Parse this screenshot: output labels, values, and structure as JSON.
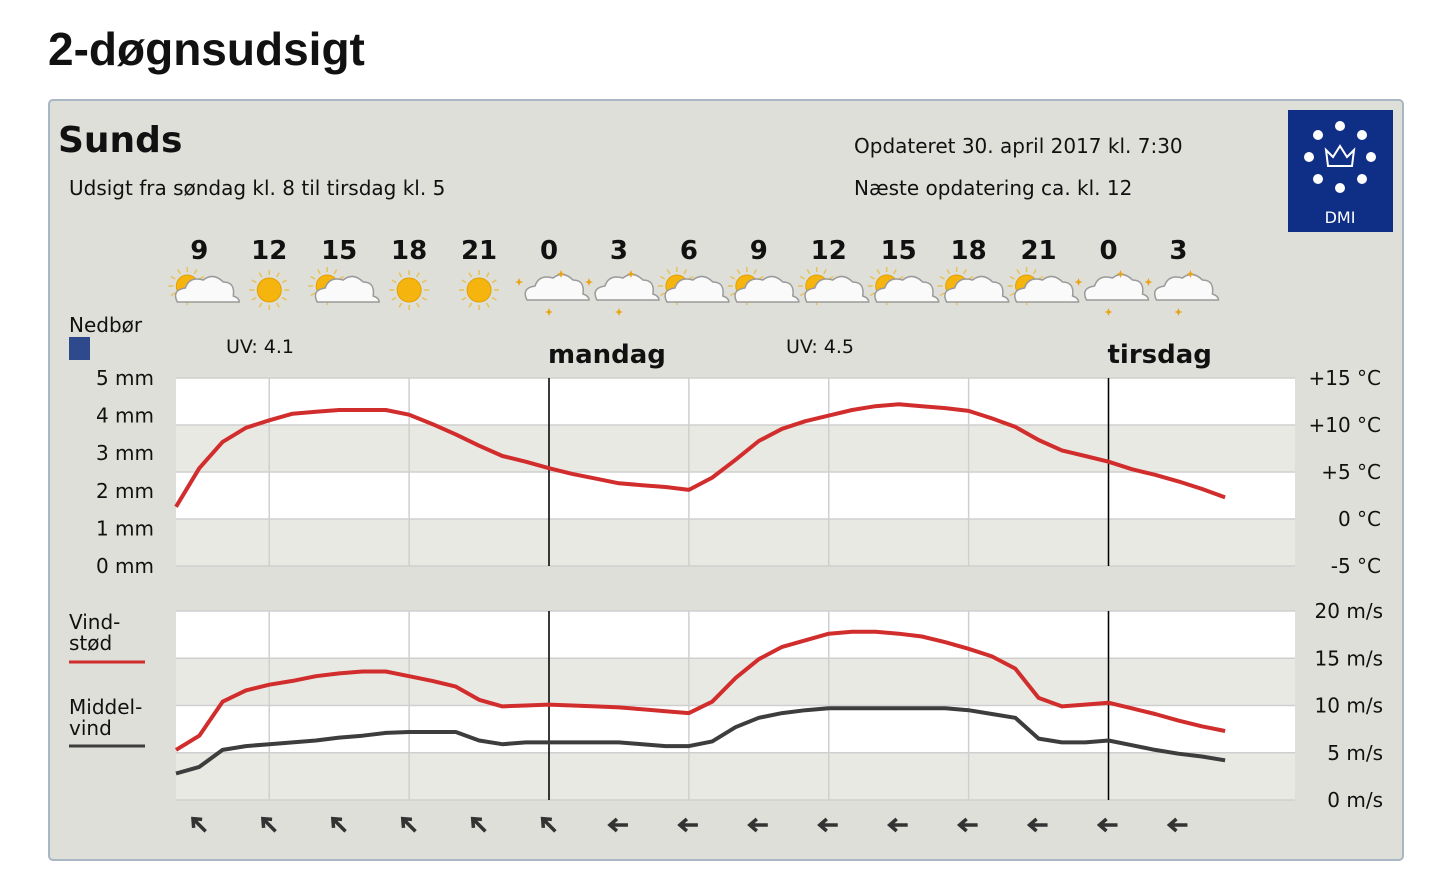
{
  "heading": "2-døgnsudsigt",
  "header": {
    "location": "Sunds",
    "period": "Udsigt fra søndag kl. 8 til tirsdag kl. 5",
    "updated": "Opdateret 30. april 2017 kl. 7:30",
    "next_update": "Næste opdatering ca. kl. 12",
    "logo": "DMI"
  },
  "chart_data": [
    {
      "type": "line",
      "x": [
        8,
        9,
        10,
        11,
        12,
        13,
        14,
        15,
        16,
        17,
        18,
        19,
        20,
        21,
        22,
        23,
        24,
        25,
        26,
        27,
        28,
        29,
        30,
        31,
        32,
        33,
        34,
        35,
        36,
        37,
        38,
        39,
        40,
        41,
        42,
        43,
        44,
        45,
        46,
        47,
        48,
        49,
        50,
        51,
        52,
        53
      ],
      "xlim": [
        8,
        56
      ],
      "xticks": [
        9,
        12,
        15,
        18,
        21,
        {
          "value": 24,
          "label": "0"
        },
        {
          "value": 27,
          "label": "3"
        },
        {
          "value": 30,
          "label": "6"
        },
        {
          "value": 33,
          "label": "9"
        },
        {
          "value": 36,
          "label": "12"
        },
        {
          "value": 39,
          "label": "15"
        },
        {
          "value": 42,
          "label": "18"
        },
        {
          "value": 45,
          "label": "21"
        },
        {
          "value": 48,
          "label": "0"
        },
        {
          "value": 51,
          "label": "3"
        }
      ],
      "ylim": [
        0,
        5
      ],
      "yticks": [
        {
          "value": 5,
          "label": "5 mm"
        },
        {
          "value": 4,
          "label": "4 mm"
        },
        {
          "value": 3,
          "label": "3 mm"
        },
        {
          "value": 2,
          "label": "2 mm"
        },
        {
          "value": 1,
          "label": "1 mm"
        },
        {
          "value": 0,
          "label": "0 mm"
        }
      ],
      "y2lim": [
        -5,
        15
      ],
      "y2ticks": [
        {
          "value": 15,
          "label": "+15 °C"
        },
        {
          "value": 10,
          "label": "+10 °C"
        },
        {
          "value": 5,
          "label": "+5 °C"
        },
        {
          "value": 0,
          "label": "0 °C"
        },
        {
          "value": -5,
          "label": "-5 °C"
        }
      ],
      "grid": true,
      "series": [
        {
          "name": "Nedbør",
          "color": "#2f4a8c",
          "values": [
            0,
            0,
            0,
            0,
            0,
            0,
            0,
            0,
            0,
            0,
            0,
            0,
            0,
            0,
            0,
            0,
            0,
            0,
            0,
            0,
            0,
            0,
            0,
            0,
            0,
            0,
            0,
            0,
            0,
            0,
            0,
            0,
            0,
            0,
            0,
            0,
            0,
            0,
            0,
            0,
            0,
            0,
            0,
            0,
            0,
            0
          ]
        },
        {
          "color": "#d22d2d",
          "axis": "y2",
          "values": [
            1.3,
            5.4,
            8.2,
            9.7,
            10.5,
            11.2,
            11.4,
            11.6,
            11.6,
            11.6,
            11.1,
            10.1,
            9.0,
            7.8,
            6.7,
            6.1,
            5.4,
            4.8,
            4.3,
            3.8,
            3.6,
            3.4,
            3.1,
            4.4,
            6.3,
            8.3,
            9.6,
            10.4,
            11.0,
            11.6,
            12.0,
            12.2,
            12.0,
            11.8,
            11.5,
            10.7,
            9.8,
            8.4,
            7.3,
            6.7,
            6.1,
            5.3,
            4.7,
            4.0,
            3.2,
            2.3
          ]
        }
      ],
      "annotations": [
        "UV: 4.1",
        "UV: 4.5"
      ],
      "days": [
        {
          "label": "mandag",
          "x": 24
        },
        {
          "label": "tirsdag",
          "x": 48
        }
      ]
    },
    {
      "type": "line",
      "x": [
        8,
        9,
        10,
        11,
        12,
        13,
        14,
        15,
        16,
        17,
        18,
        19,
        20,
        21,
        22,
        23,
        24,
        25,
        26,
        27,
        28,
        29,
        30,
        31,
        32,
        33,
        34,
        35,
        36,
        37,
        38,
        39,
        40,
        41,
        42,
        43,
        44,
        45,
        46,
        47,
        48,
        49,
        50,
        51,
        52,
        53
      ],
      "xlim": [
        8,
        56
      ],
      "ylim": [
        0,
        20
      ],
      "yticks": [
        {
          "value": 20,
          "label": "20 m/s"
        },
        {
          "value": 15,
          "label": "15 m/s"
        },
        {
          "value": 10,
          "label": "10 m/s"
        },
        {
          "value": 5,
          "label": "5 m/s"
        },
        {
          "value": 0,
          "label": "0 m/s"
        }
      ],
      "grid": true,
      "series": [
        {
          "name": "Vind-\nstød",
          "color": "#d22d2d",
          "values": [
            5.3,
            6.8,
            10.4,
            11.6,
            12.2,
            12.6,
            13.1,
            13.4,
            13.6,
            13.6,
            13.1,
            12.6,
            12.0,
            10.6,
            9.9,
            10.0,
            10.1,
            10.0,
            9.9,
            9.8,
            9.6,
            9.4,
            9.2,
            10.4,
            12.9,
            14.9,
            16.2,
            16.9,
            17.6,
            17.8,
            17.8,
            17.6,
            17.3,
            16.7,
            16.0,
            15.2,
            13.9,
            10.8,
            9.9,
            10.1,
            10.3,
            9.7,
            9.1,
            8.4,
            7.8,
            7.3
          ]
        },
        {
          "name": "Middel-\nvind",
          "color": "#3d3d3d",
          "values": [
            2.8,
            3.5,
            5.3,
            5.7,
            5.9,
            6.1,
            6.3,
            6.6,
            6.8,
            7.1,
            7.2,
            7.2,
            7.2,
            6.3,
            5.9,
            6.1,
            6.1,
            6.1,
            6.1,
            6.1,
            5.9,
            5.7,
            5.7,
            6.2,
            7.7,
            8.7,
            9.2,
            9.5,
            9.7,
            9.7,
            9.7,
            9.7,
            9.7,
            9.7,
            9.5,
            9.1,
            8.7,
            6.5,
            6.1,
            6.1,
            6.3,
            5.8,
            5.3,
            4.9,
            4.6,
            4.2
          ]
        }
      ],
      "wind_directions": [
        315,
        315,
        315,
        315,
        315,
        315,
        270,
        270,
        270,
        270,
        270,
        270,
        270,
        270,
        270
      ]
    }
  ]
}
